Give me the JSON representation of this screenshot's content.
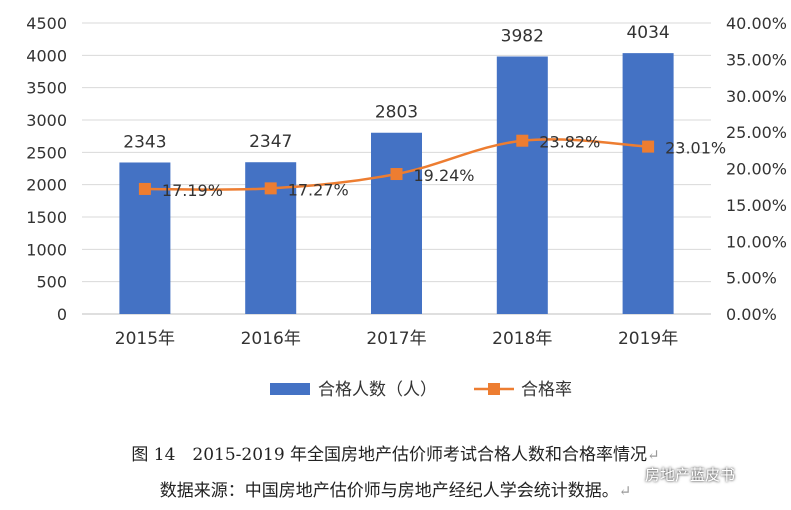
{
  "chart_data": {
    "type": "bar",
    "categories": [
      "2015年",
      "2016年",
      "2017年",
      "2018年",
      "2019年"
    ],
    "series": [
      {
        "name": "合格人数（人）",
        "type": "bar",
        "axis": "left",
        "values": [
          2343,
          2347,
          2803,
          3982,
          4034
        ],
        "labels": [
          "2343",
          "2347",
          "2803",
          "3982",
          "4034"
        ],
        "color": "#4472C4"
      },
      {
        "name": "合格率",
        "type": "line",
        "axis": "right",
        "values": [
          17.19,
          17.27,
          19.24,
          23.82,
          23.01
        ],
        "labels": [
          "17.19%",
          "17.27%",
          "19.24%",
          "23.82%",
          "23.01%"
        ],
        "color": "#ED7D31"
      }
    ],
    "y_left": {
      "lim": [
        0,
        4500
      ],
      "ticks": [
        0,
        500,
        1000,
        1500,
        2000,
        2500,
        3000,
        3500,
        4000,
        4500
      ],
      "tick_labels": [
        "0",
        "500",
        "1000",
        "1500",
        "2000",
        "2500",
        "3000",
        "3500",
        "4000",
        "4500"
      ]
    },
    "y_right": {
      "lim": [
        0,
        40
      ],
      "ticks": [
        0,
        5,
        10,
        15,
        20,
        25,
        30,
        35,
        40
      ],
      "tick_labels": [
        "0.00%",
        "5.00%",
        "10.00%",
        "15.00%",
        "20.00%",
        "25.00%",
        "30.00%",
        "35.00%",
        "40.00%"
      ]
    },
    "grid": true,
    "legend": "bottom"
  },
  "caption": {
    "title": "图 14　2015-2019 年全国房地产估价师考试合格人数和合格率情况",
    "source": "数据来源：中国房地产估价师与房地产经纪人学会统计数据。",
    "return_mark": "↵"
  },
  "watermark": {
    "text": "房地产蓝皮书",
    "icon": "wechat-icon"
  }
}
